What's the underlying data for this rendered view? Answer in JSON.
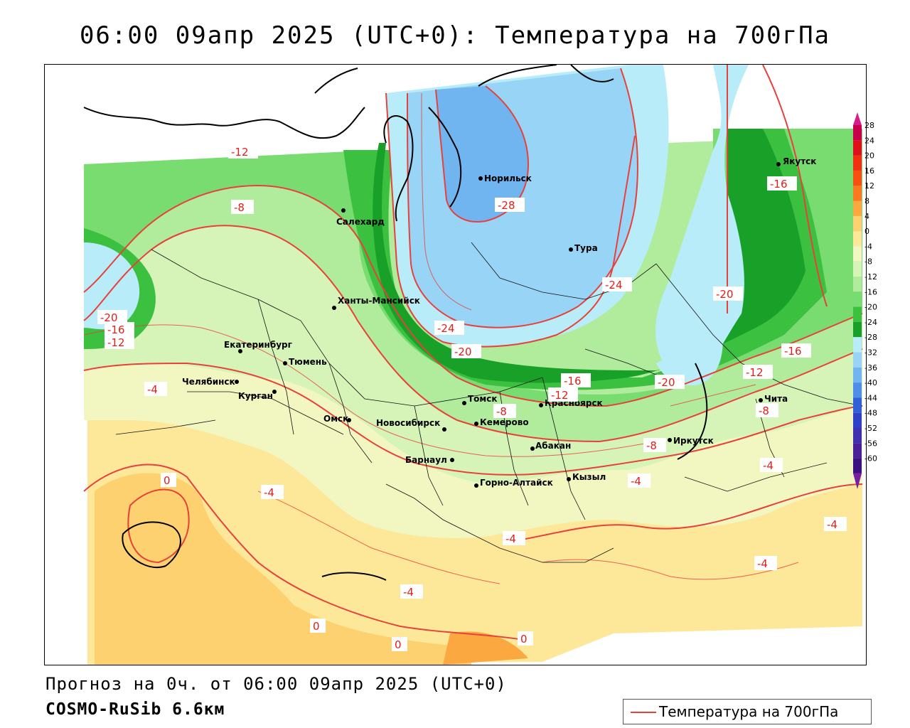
{
  "title": "06:00 09апр 2025 (UTC+0): Температура на 700гПа",
  "footer": {
    "forecast": "Прогноз на 0ч. от 06:00 09апр 2025 (UTC+0)",
    "model": "COSMO-RuSib 6.6км"
  },
  "legend": {
    "label": "Температура на 700гПа",
    "line_color": "#e8403a"
  },
  "colorbar": {
    "levels": [
      "28",
      "24",
      "20",
      "16",
      "12",
      "8",
      "4",
      "0",
      "-4",
      "-8",
      "-12",
      "-16",
      "-20",
      "-24",
      "-28",
      "-32",
      "-36",
      "-40",
      "-44",
      "-48",
      "-52",
      "-56",
      "-60"
    ],
    "colors": [
      "#c8004c",
      "#e0101a",
      "#f03010",
      "#f85010",
      "#fb7a20",
      "#fca840",
      "#fdd070",
      "#fde89a",
      "#f2f6c0",
      "#d6f4b8",
      "#b0ec9c",
      "#78dc70",
      "#3cc040",
      "#18a028",
      "#b8ecf8",
      "#98d4f6",
      "#70b4f0",
      "#4c8ee8",
      "#3060d8",
      "#3040c8",
      "#4030b0",
      "#4a2098",
      "#3c1080"
    ]
  },
  "cities": [
    {
      "name": "Норильск"
    },
    {
      "name": "Якутск"
    },
    {
      "name": "Салехард"
    },
    {
      "name": "Тура"
    },
    {
      "name": "Ханты-Мансийск"
    },
    {
      "name": "Екатеринбург"
    },
    {
      "name": "Тюмень"
    },
    {
      "name": "Челябинск"
    },
    {
      "name": "Курган"
    },
    {
      "name": "Томск"
    },
    {
      "name": "Красноярск"
    },
    {
      "name": "Омск"
    },
    {
      "name": "Новосибирск"
    },
    {
      "name": "Кемерово"
    },
    {
      "name": "Абакан"
    },
    {
      "name": "Иркутск"
    },
    {
      "name": "Чита"
    },
    {
      "name": "Барнаул"
    },
    {
      "name": "Кызыл"
    },
    {
      "name": "Горно-Алтайск"
    }
  ],
  "isotherm_labels": [
    "-12",
    "-8",
    "-28",
    "-16",
    "-24",
    "-20",
    "-24",
    "-20",
    "-16",
    "-16",
    "-12",
    "-20",
    "-12",
    "-8",
    "-8",
    "-8",
    "-4",
    "-4",
    "-4",
    "-4",
    "-4",
    "-4",
    "-4",
    "0",
    "0",
    "0",
    "0",
    "-16",
    "-12",
    "-20",
    "-4"
  ]
}
